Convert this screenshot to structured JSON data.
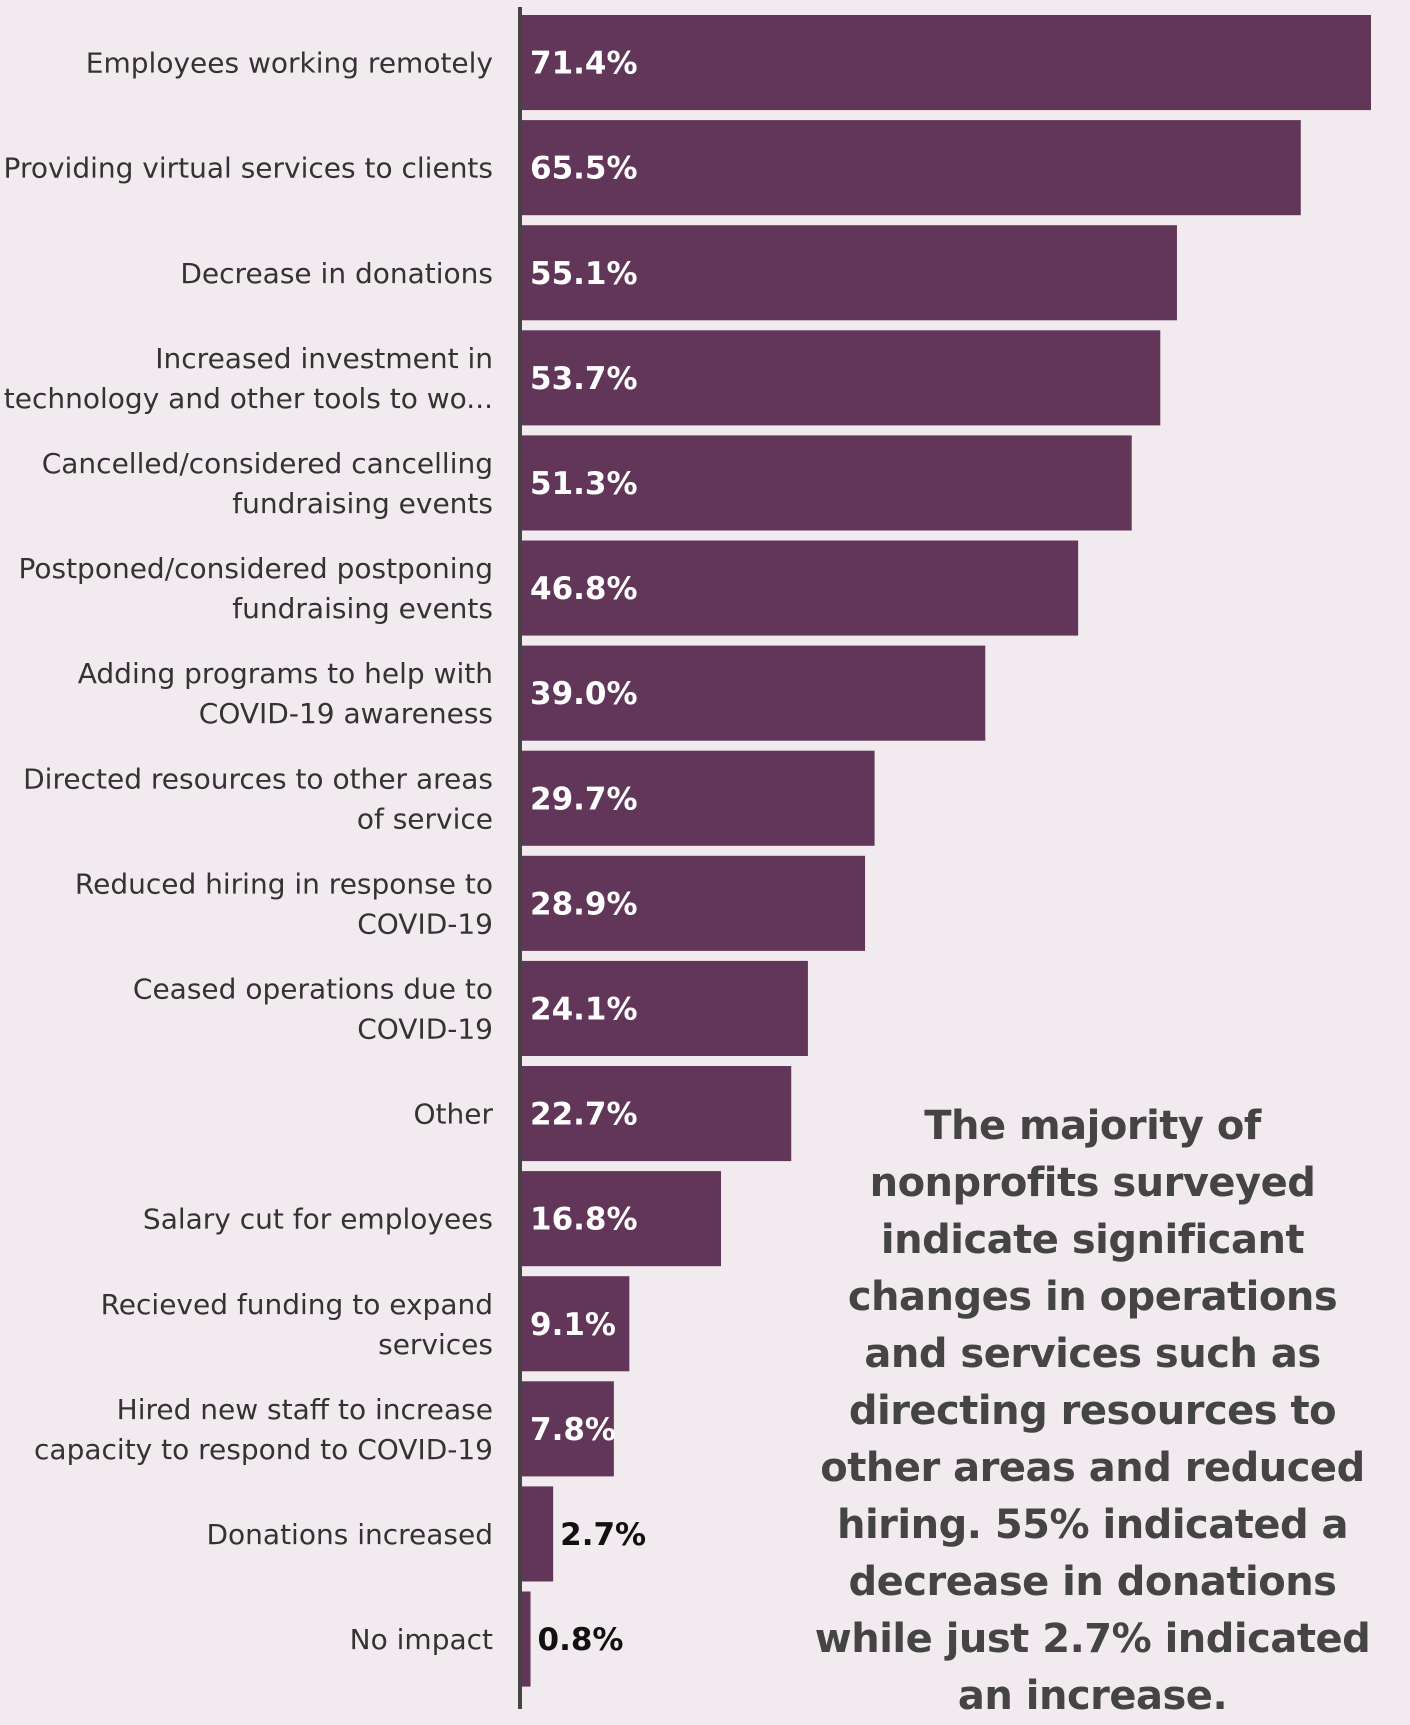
{
  "chart_data": {
    "type": "bar",
    "orientation": "horizontal",
    "categories": [
      [
        "Employees working remotely"
      ],
      [
        "Providing virtual services to clients"
      ],
      [
        "Decrease in donations"
      ],
      [
        "Increased investment in",
        "technology and other tools to wo..."
      ],
      [
        "Cancelled/considered cancelling",
        "fundraising events"
      ],
      [
        "Postponed/considered postponing",
        "fundraising events"
      ],
      [
        "Adding programs to help with",
        "COVID-19 awareness"
      ],
      [
        "Directed resources to other areas",
        "of service"
      ],
      [
        "Reduced hiring in response to",
        "COVID-19"
      ],
      [
        "Ceased operations due to",
        "COVID-19"
      ],
      [
        "Other"
      ],
      [
        "Salary cut for employees"
      ],
      [
        "Recieved funding to expand",
        "services"
      ],
      [
        "Hired new staff to increase",
        "capacity to respond to COVID-19"
      ],
      [
        "Donations increased"
      ],
      [
        "No impact"
      ]
    ],
    "values": [
      71.4,
      65.5,
      55.1,
      53.7,
      51.3,
      46.8,
      39.0,
      29.7,
      28.9,
      24.1,
      22.7,
      16.8,
      9.1,
      7.8,
      2.7,
      0.8
    ],
    "value_labels": [
      "71.4%",
      "65.5%",
      "55.1%",
      "53.7%",
      "51.3%",
      "46.8%",
      "39.0%",
      "29.7%",
      "28.9%",
      "24.1%",
      "22.7%",
      "16.8%",
      "9.1%",
      "7.8%",
      "2.7%",
      "0.8%"
    ],
    "xlim": [
      0,
      71.4
    ],
    "bar_color": "#613658",
    "axis_color": "#444444",
    "label_color": "#333333",
    "inside_label_color": "#ffffff",
    "outside_label_color": "#111111",
    "title": "",
    "xlabel": "",
    "ylabel": "",
    "grid": false,
    "legend": "none"
  },
  "annotation": {
    "text": "The majority of nonprofits surveyed indicate significant changes in operations and services such as directing resources to other areas and reduced hiring. 55% indicated a decrease in donations while just 2.7% indicated an increase."
  }
}
